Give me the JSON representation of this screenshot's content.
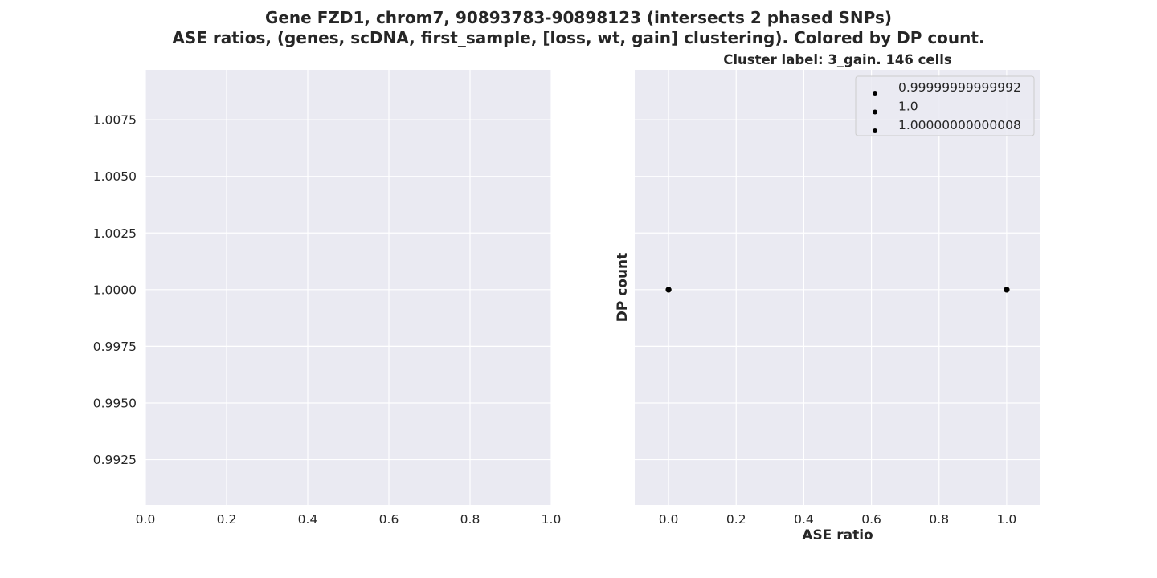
{
  "figure": {
    "title_line1": "Gene FZD1, chrom7, 90893783-90898123 (intersects 2 phased SNPs)",
    "title_line2": "ASE ratios, (genes, scDNA, first_sample, [loss, wt, gain] clustering). Colored by DP count."
  },
  "chart_data": [
    {
      "type": "scatter",
      "title": "",
      "xlabel": "",
      "ylabel": "",
      "xlim": [
        0.0,
        1.0
      ],
      "ylim": [
        0.9905,
        1.0097
      ],
      "xticks": [
        0.0,
        0.2,
        0.4,
        0.6,
        0.8,
        1.0
      ],
      "xtick_labels": [
        "0.0",
        "0.2",
        "0.4",
        "0.6",
        "0.8",
        "1.0"
      ],
      "yticks": [
        0.9925,
        0.995,
        0.9975,
        1.0,
        1.0025,
        1.005,
        1.0075
      ],
      "ytick_labels": [
        "0.9925",
        "0.9950",
        "0.9975",
        "1.0000",
        "1.0025",
        "1.0050",
        "1.0075"
      ],
      "grid": true,
      "background": "#eaeaf2",
      "series": []
    },
    {
      "type": "scatter",
      "title": "Cluster label: 3_gain. 146 cells",
      "xlabel": "ASE ratio",
      "ylabel": "DP count",
      "xlim": [
        -0.1,
        1.1
      ],
      "ylim": [
        0.9905,
        1.0097
      ],
      "xticks": [
        0.0,
        0.2,
        0.4,
        0.6,
        0.8,
        1.0
      ],
      "xtick_labels": [
        "0.0",
        "0.2",
        "0.4",
        "0.6",
        "0.8",
        "1.0"
      ],
      "yticks": [
        0.9925,
        0.995,
        0.9975,
        1.0,
        1.0025,
        1.005,
        1.0075
      ],
      "grid": true,
      "background": "#eaeaf2",
      "legend_position": "top-right",
      "legend": [
        "0.99999999999992",
        "1.0",
        "1.00000000000008"
      ],
      "point_color": "#000000",
      "points": [
        {
          "x": 0.0,
          "y": 1.0
        },
        {
          "x": 1.0,
          "y": 1.0
        }
      ]
    }
  ]
}
